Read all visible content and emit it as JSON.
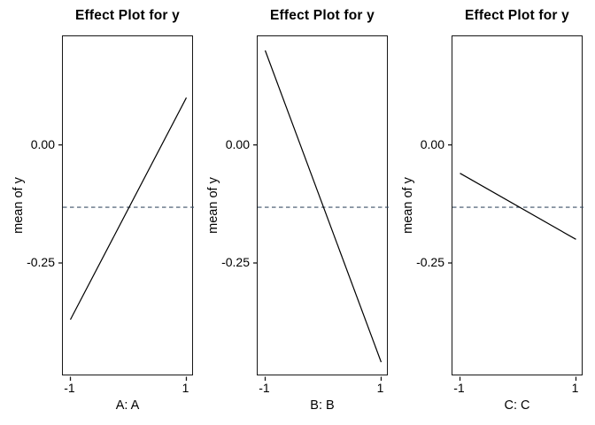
{
  "figure": {
    "background": "#ffffff",
    "border_color": "#161616",
    "text_color": "#000000"
  },
  "chart_data": [
    {
      "type": "line",
      "title": "Effect Plot for y",
      "xlabel": "A: A",
      "ylabel": "mean of y",
      "x": [
        -1,
        1
      ],
      "values": [
        -0.37,
        0.1
      ],
      "mean_line": -0.132,
      "xlim": [
        -1.13,
        1.13
      ],
      "ylim": [
        -0.49,
        0.23
      ],
      "xticks": [
        -1,
        1
      ],
      "xtick_labels": [
        "-1",
        "1"
      ],
      "yticks": [
        0,
        -0.25
      ],
      "ytick_labels": [
        "0.00",
        "-0.25"
      ],
      "line_color": "#000000",
      "mean_line_color": "#3c5068",
      "mean_line_style": "dashed",
      "grid": false,
      "legend": "none"
    },
    {
      "type": "line",
      "title": "Effect Plot for y",
      "xlabel": "B: B",
      "ylabel": "mean of y",
      "x": [
        -1,
        1
      ],
      "values": [
        0.2,
        -0.46
      ],
      "mean_line": -0.132,
      "xlim": [
        -1.13,
        1.13
      ],
      "ylim": [
        -0.49,
        0.23
      ],
      "xticks": [
        -1,
        1
      ],
      "xtick_labels": [
        "-1",
        "1"
      ],
      "yticks": [
        0,
        -0.25
      ],
      "ytick_labels": [
        "0.00",
        "-0.25"
      ],
      "line_color": "#000000",
      "mean_line_color": "#3c5068",
      "mean_line_style": "dashed",
      "grid": false,
      "legend": "none"
    },
    {
      "type": "line",
      "title": "Effect Plot for y",
      "xlabel": "C: C",
      "ylabel": "mean of y",
      "x": [
        -1,
        1
      ],
      "values": [
        -0.06,
        -0.2
      ],
      "mean_line": -0.132,
      "xlim": [
        -1.13,
        1.13
      ],
      "ylim": [
        -0.49,
        0.23
      ],
      "xticks": [
        -1,
        1
      ],
      "xtick_labels": [
        "-1",
        "1"
      ],
      "yticks": [
        0,
        -0.25
      ],
      "ytick_labels": [
        "0.00",
        "-0.25"
      ],
      "line_color": "#000000",
      "mean_line_color": "#3c5068",
      "mean_line_style": "dashed",
      "grid": false,
      "legend": "none"
    }
  ]
}
